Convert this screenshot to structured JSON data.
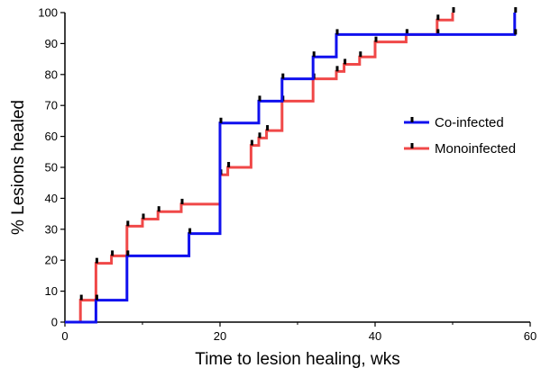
{
  "chart_data": {
    "type": "line",
    "step": true,
    "title": "",
    "xlabel": "Time to lesion healing, wks",
    "ylabel": "% Lesions healed",
    "xlim": [
      0,
      60
    ],
    "ylim": [
      0,
      100
    ],
    "xticks": [
      "0",
      "20",
      "40",
      "60"
    ],
    "yticks": [
      "0",
      "10",
      "20",
      "30",
      "40",
      "50",
      "60",
      "70",
      "80",
      "90",
      "100"
    ],
    "grid": false,
    "legend_position": "right",
    "series": [
      {
        "name": "Co-infected",
        "color": "#1010ee",
        "points": [
          [
            0,
            0
          ],
          [
            4,
            7.1
          ],
          [
            8,
            21.4
          ],
          [
            16,
            28.6
          ],
          [
            20,
            64.3
          ],
          [
            25,
            71.4
          ],
          [
            28,
            78.6
          ],
          [
            32,
            85.7
          ],
          [
            35,
            92.9
          ],
          [
            58,
            100
          ]
        ],
        "censored": [
          [
            58,
            92.9
          ]
        ]
      },
      {
        "name": "Monoinfected",
        "color": "#f04848",
        "points": [
          [
            0,
            0
          ],
          [
            2,
            7.1
          ],
          [
            4,
            19
          ],
          [
            6,
            21.4
          ],
          [
            8,
            31
          ],
          [
            10,
            33.3
          ],
          [
            12,
            35.7
          ],
          [
            15,
            38.1
          ],
          [
            20,
            47.6
          ],
          [
            21,
            50
          ],
          [
            24,
            57.1
          ],
          [
            25,
            59.5
          ],
          [
            26,
            61.9
          ],
          [
            28,
            71.4
          ],
          [
            32,
            78.6
          ],
          [
            35,
            81
          ],
          [
            36,
            83.3
          ],
          [
            38,
            85.7
          ],
          [
            40,
            90.5
          ],
          [
            44,
            92.9
          ],
          [
            48,
            97.6
          ],
          [
            50,
            100
          ]
        ],
        "censored": [
          [
            44,
            92.9
          ],
          [
            48,
            92.9
          ]
        ]
      }
    ]
  }
}
